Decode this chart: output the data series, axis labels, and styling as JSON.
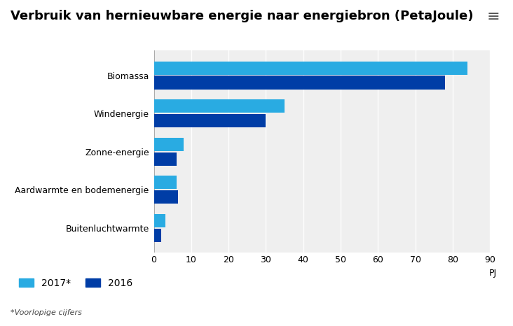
{
  "title": "Verbruik van hernieuwbare energie naar energiebron (PetaJoule)",
  "categories": [
    "Biomassa",
    "Windenergie",
    "Zonne-energie",
    "Aardwarmte en bodemenergie",
    "Buitenluchtwarmte"
  ],
  "values_2017": [
    84,
    35,
    8,
    6,
    3
  ],
  "values_2016": [
    78,
    30,
    6,
    6.5,
    2
  ],
  "color_2017": "#29ABE2",
  "color_2016": "#003DA6",
  "background_plot": "#EFEFEF",
  "background_fig": "#FFFFFF",
  "xlabel": "PJ",
  "xlim": [
    0,
    90
  ],
  "xticks": [
    0,
    10,
    20,
    30,
    40,
    50,
    60,
    70,
    80,
    90
  ],
  "legend_2017": "2017*",
  "legend_2016": "2016",
  "footnote": "*Voorlopige cijfers",
  "title_fontsize": 13,
  "axis_fontsize": 9,
  "tick_fontsize": 9
}
